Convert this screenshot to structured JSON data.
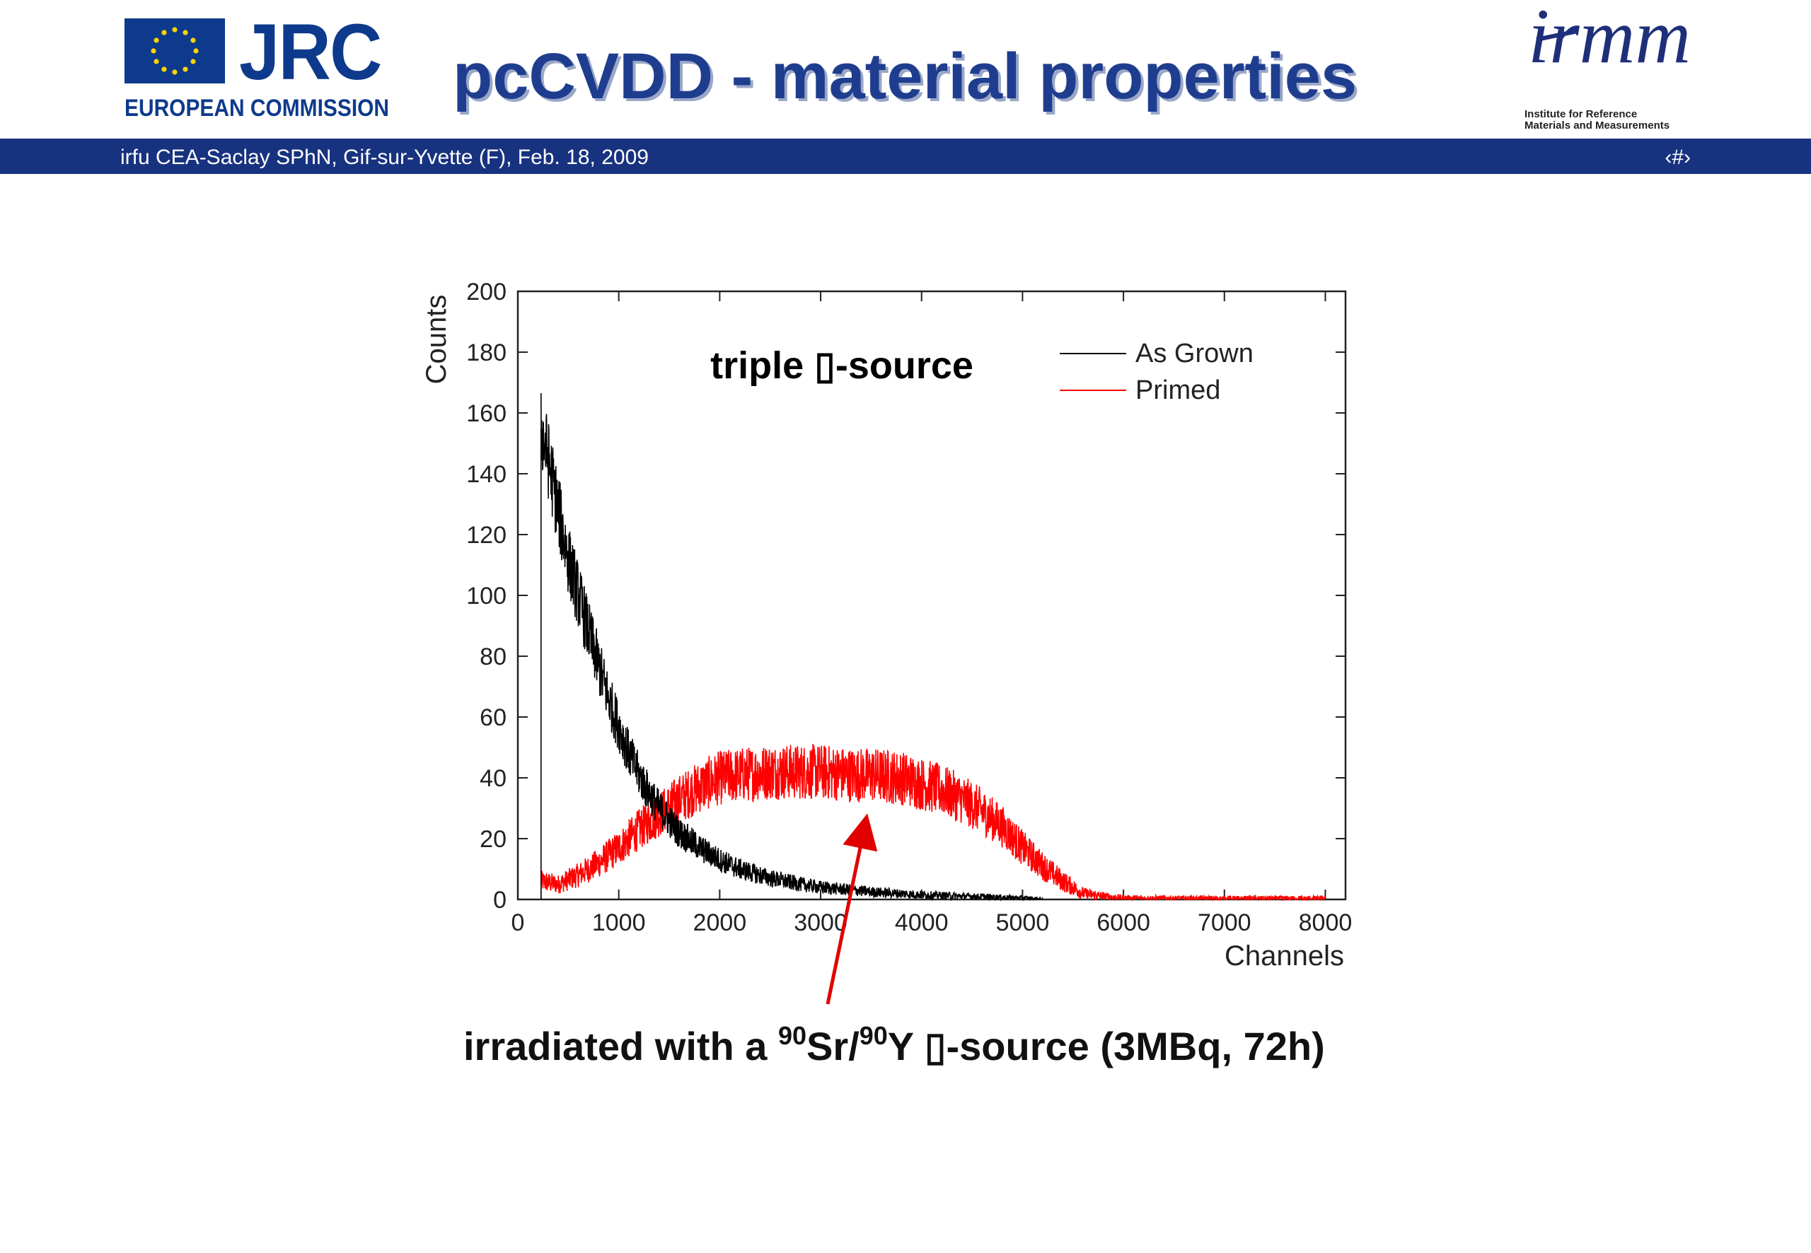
{
  "header": {
    "logo_left": {
      "brand": "JRC",
      "subtitle": "EUROPEAN COMMISSION",
      "flag_color": "#0d3a8c"
    },
    "title": "pcCVDD - material properties",
    "logo_right": {
      "brand": "irmm",
      "caption_line1": "Institute for Reference",
      "caption_line2": "Materials and Measurements"
    }
  },
  "banner": {
    "text": "irfu CEA-Saclay SPhN, Gif-sur-Yvette (F), Feb. 18, 2009",
    "page": "‹#›",
    "color": "#17327f"
  },
  "chart_data": {
    "type": "line",
    "annotation": "triple ▯-source",
    "xlabel": "Channels",
    "ylabel": "Counts",
    "xlim": [
      0,
      8200
    ],
    "ylim": [
      0,
      200
    ],
    "xticks": [
      0,
      1000,
      2000,
      3000,
      4000,
      5000,
      6000,
      7000,
      8000
    ],
    "yticks": [
      0,
      20,
      40,
      60,
      80,
      100,
      120,
      140,
      160,
      180,
      200
    ],
    "legend_position": "top-right",
    "series": [
      {
        "name": "As Grown",
        "color": "#000000",
        "noise": 7,
        "x": [
          230,
          300,
          400,
          500,
          600,
          700,
          800,
          900,
          1000,
          1100,
          1200,
          1300,
          1400,
          1500,
          1600,
          1800,
          2000,
          2200,
          2500,
          2800,
          3000,
          3500,
          4000,
          4500,
          5000,
          5200
        ],
        "y": [
          155,
          145,
          128,
          112,
          100,
          88,
          77,
          66,
          57,
          48,
          41,
          35,
          30,
          26,
          22,
          17,
          13,
          10,
          7,
          5,
          4,
          2.5,
          1.5,
          1,
          0.5,
          0
        ]
      },
      {
        "name": "Primed",
        "color": "#ff0000",
        "noise": 9,
        "x": [
          230,
          400,
          600,
          800,
          1000,
          1200,
          1400,
          1600,
          1800,
          2000,
          2200,
          2500,
          2800,
          3000,
          3300,
          3500,
          3800,
          4000,
          4200,
          4400,
          4600,
          4800,
          5000,
          5200,
          5400,
          5600,
          5800,
          6000,
          6500,
          7000,
          8000
        ],
        "y": [
          6,
          5,
          8,
          12,
          17,
          23,
          28,
          33,
          37,
          40,
          41,
          42,
          42,
          42,
          41,
          41,
          40,
          38,
          36,
          33,
          29,
          24,
          17,
          11,
          6,
          2,
          1,
          0.5,
          0.3,
          0.2,
          0.2
        ]
      }
    ]
  },
  "caption": {
    "prefix": "irradiated with a ",
    "iso1": "90",
    "el1": "Sr/",
    "iso2": "90",
    "el2": "Y ▯-source (3MBq, 72h)"
  },
  "arrow_color": "#e00000"
}
